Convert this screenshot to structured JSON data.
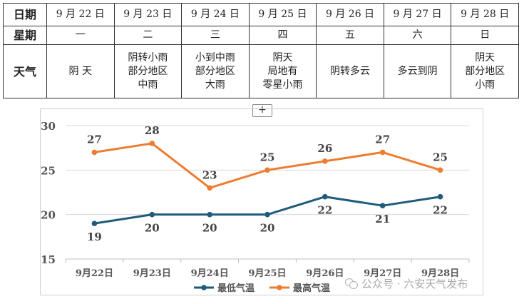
{
  "table": {
    "headers": {
      "date": "日期",
      "weekday": "星期",
      "weather": "天气"
    },
    "days": [
      {
        "date": "9 月 22 日",
        "weekday": "一",
        "weather": [
          "阴 天"
        ]
      },
      {
        "date": "9 月 23 日",
        "weekday": "二",
        "weather": [
          "阴转小雨",
          "部分地区",
          "中雨"
        ]
      },
      {
        "date": "9 月 24 日",
        "weekday": "三",
        "weather": [
          "小到中雨",
          "部分地区",
          "大雨"
        ]
      },
      {
        "date": "9 月 25 日",
        "weekday": "四",
        "weather": [
          "阴天",
          "局地有",
          "零星小雨"
        ]
      },
      {
        "date": "9 月 26 日",
        "weekday": "五",
        "weather": [
          "阴转多云"
        ]
      },
      {
        "date": "9 月 27 日",
        "weekday": "六",
        "weather": [
          "多云到阴"
        ]
      },
      {
        "date": "9 月 28 日",
        "weekday": "日",
        "weather": [
          "阴天",
          "部分地区",
          "小雨"
        ]
      }
    ]
  },
  "add_button_label": "+",
  "chart_data": {
    "type": "line",
    "title": "",
    "xlabel": "",
    "ylabel": "",
    "categories": [
      "9月22日",
      "9月23日",
      "9月24日",
      "9月25日",
      "9月26日",
      "9月27日",
      "9月28日"
    ],
    "series": [
      {
        "name": "最低气温",
        "values": [
          19,
          20,
          20,
          20,
          22,
          21,
          22
        ],
        "color": "#1f5b7a",
        "label_position": "below"
      },
      {
        "name": "最高气温",
        "values": [
          27,
          28,
          23,
          25,
          26,
          27,
          25
        ],
        "color": "#ed7d31",
        "label_position": "above"
      }
    ],
    "ylim": [
      15,
      30
    ],
    "yticks": [
      15,
      20,
      25,
      30
    ],
    "grid": true,
    "legend": "bottom-center"
  },
  "watermark": {
    "text": "公众号 · 六安天气发布",
    "icon": "wechat-icon"
  }
}
